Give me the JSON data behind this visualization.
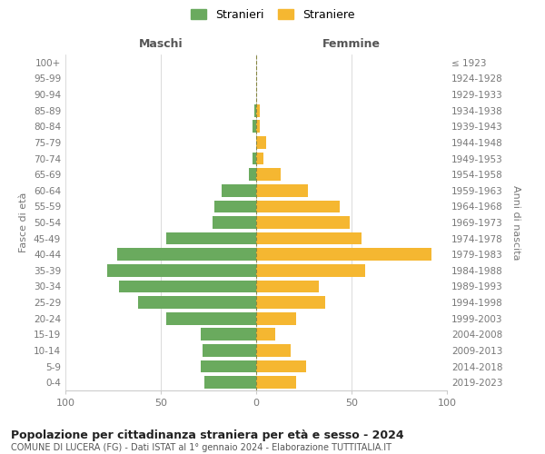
{
  "age_groups": [
    "0-4",
    "5-9",
    "10-14",
    "15-19",
    "20-24",
    "25-29",
    "30-34",
    "35-39",
    "40-44",
    "45-49",
    "50-54",
    "55-59",
    "60-64",
    "65-69",
    "70-74",
    "75-79",
    "80-84",
    "85-89",
    "90-94",
    "95-99",
    "100+"
  ],
  "birth_years": [
    "2019-2023",
    "2014-2018",
    "2009-2013",
    "2004-2008",
    "1999-2003",
    "1994-1998",
    "1989-1993",
    "1984-1988",
    "1979-1983",
    "1974-1978",
    "1969-1973",
    "1964-1968",
    "1959-1963",
    "1954-1958",
    "1949-1953",
    "1944-1948",
    "1939-1943",
    "1934-1938",
    "1929-1933",
    "1924-1928",
    "≤ 1923"
  ],
  "maschi": [
    27,
    29,
    28,
    29,
    47,
    62,
    72,
    78,
    73,
    47,
    23,
    22,
    18,
    4,
    2,
    0,
    2,
    1,
    0,
    0,
    0
  ],
  "femmine": [
    21,
    26,
    18,
    10,
    21,
    36,
    33,
    57,
    92,
    55,
    49,
    44,
    27,
    13,
    4,
    5,
    2,
    2,
    0,
    0,
    0
  ],
  "maschi_color": "#6aaa5e",
  "femmine_color": "#f5b731",
  "title": "Popolazione per cittadinanza straniera per età e sesso - 2024",
  "subtitle": "COMUNE DI LUCERA (FG) - Dati ISTAT al 1° gennaio 2024 - Elaborazione TUTTITALIA.IT",
  "xlabel_left": "Maschi",
  "xlabel_right": "Femmine",
  "ylabel_left": "Fasce di età",
  "ylabel_right": "Anni di nascita",
  "xlim": 100,
  "legend_maschi": "Stranieri",
  "legend_femmine": "Straniere",
  "background_color": "#ffffff",
  "grid_color": "#cccccc"
}
